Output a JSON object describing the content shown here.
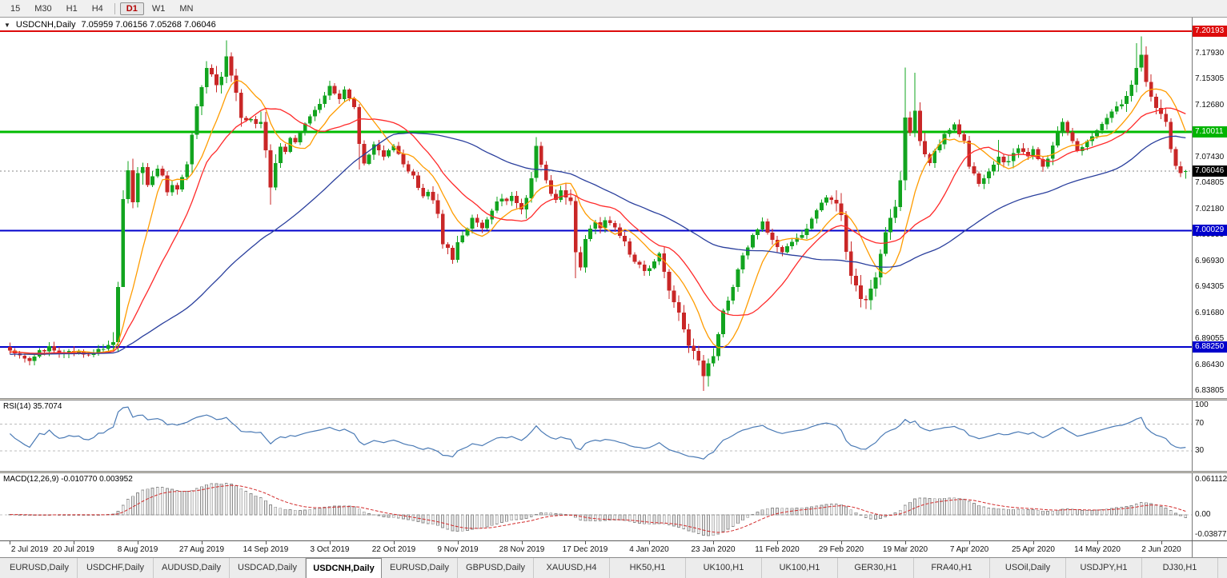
{
  "toolbar": {
    "periods": [
      "15",
      "M30",
      "H1",
      "H4",
      "|",
      "D1",
      "W1",
      "MN"
    ],
    "active": "D1"
  },
  "chart": {
    "symbol_title": "USDCNH,Daily",
    "ohlc_text": "7.05959 7.06156 7.05268 7.06046"
  },
  "colors": {
    "up": "#12a41f",
    "down": "#c92727"
  },
  "price_axis": {
    "labels": [
      {
        "t": "7.17930",
        "p": 7.1793
      },
      {
        "t": "7.15305",
        "p": 7.15305
      },
      {
        "t": "7.12680",
        "p": 7.1268
      },
      {
        "t": "7.07430",
        "p": 7.0743
      },
      {
        "t": "7.04805",
        "p": 7.04805
      },
      {
        "t": "7.02180",
        "p": 7.0218
      },
      {
        "t": "6.99555",
        "p": 6.99555
      },
      {
        "t": "6.96930",
        "p": 6.9693
      },
      {
        "t": "6.94305",
        "p": 6.94305
      },
      {
        "t": "6.91680",
        "p": 6.9168
      },
      {
        "t": "6.89055",
        "p": 6.89055
      },
      {
        "t": "6.86430",
        "p": 6.8643
      },
      {
        "t": "6.83805",
        "p": 6.83805
      }
    ],
    "badges": [
      {
        "t": "7.20193",
        "p": 7.20193,
        "bg": "#dd0b0b"
      },
      {
        "t": "7.10011",
        "p": 7.10011,
        "bg": "#00b400"
      },
      {
        "t": "7.06046",
        "p": 7.06046,
        "bg": "#000000"
      },
      {
        "t": "7.00029",
        "p": 7.00029,
        "bg": "#0000cc"
      },
      {
        "t": "6.88250",
        "p": 6.8825,
        "bg": "#0000cc"
      }
    ]
  },
  "chart_data": {
    "type": "candlestick",
    "title": "USDCNH,Daily",
    "bars": 240,
    "bid": 7.06046,
    "price_range": {
      "top": 7.2157,
      "bottom": 6.8308
    },
    "levels": [
      {
        "p": 7.20193,
        "c": "#dd0b0b",
        "w": 2
      },
      {
        "p": 7.10011,
        "c": "#00bb00",
        "w": 3
      },
      {
        "p": 7.00029,
        "c": "#0000cc",
        "w": 2
      },
      {
        "p": 6.8825,
        "c": "#0000cc",
        "w": 2
      }
    ],
    "moving_averages": [
      {
        "period": 9,
        "color": "#ff9c00"
      },
      {
        "period": 18,
        "color": "#ff2a2a"
      },
      {
        "period": 56,
        "color": "#2a3f9d"
      }
    ],
    "anchors": [
      [
        0,
        6.879
      ],
      [
        2,
        6.875
      ],
      [
        4,
        6.87
      ],
      [
        6,
        6.878
      ],
      [
        8,
        6.882
      ],
      [
        10,
        6.876
      ],
      [
        12,
        6.88
      ],
      [
        14,
        6.877
      ],
      [
        16,
        6.873
      ],
      [
        18,
        6.88
      ],
      [
        20,
        6.883
      ],
      [
        21,
        6.886
      ],
      [
        22,
        6.942
      ],
      [
        23,
        7.035
      ],
      [
        24,
        7.06
      ],
      [
        25,
        7.028
      ],
      [
        26,
        7.056
      ],
      [
        27,
        7.065
      ],
      [
        28,
        7.048
      ],
      [
        29,
        7.056
      ],
      [
        30,
        7.064
      ],
      [
        31,
        7.056
      ],
      [
        32,
        7.04
      ],
      [
        33,
        7.047
      ],
      [
        34,
        7.043
      ],
      [
        35,
        7.056
      ],
      [
        36,
        7.068
      ],
      [
        37,
        7.098
      ],
      [
        38,
        7.128
      ],
      [
        39,
        7.148
      ],
      [
        40,
        7.163
      ],
      [
        41,
        7.156
      ],
      [
        42,
        7.145
      ],
      [
        43,
        7.158
      ],
      [
        44,
        7.176
      ],
      [
        45,
        7.16
      ],
      [
        46,
        7.14
      ],
      [
        47,
        7.116
      ],
      [
        48,
        7.11
      ],
      [
        49,
        7.114
      ],
      [
        50,
        7.108
      ],
      [
        51,
        7.113
      ],
      [
        52,
        7.082
      ],
      [
        53,
        7.046
      ],
      [
        54,
        7.068
      ],
      [
        55,
        7.084
      ],
      [
        56,
        7.078
      ],
      [
        57,
        7.093
      ],
      [
        58,
        7.089
      ],
      [
        59,
        7.101
      ],
      [
        60,
        7.108
      ],
      [
        61,
        7.116
      ],
      [
        62,
        7.123
      ],
      [
        63,
        7.13
      ],
      [
        64,
        7.138
      ],
      [
        65,
        7.146
      ],
      [
        66,
        7.139
      ],
      [
        67,
        7.134
      ],
      [
        68,
        7.142
      ],
      [
        69,
        7.135
      ],
      [
        70,
        7.126
      ],
      [
        71,
        7.09
      ],
      [
        72,
        7.068
      ],
      [
        73,
        7.079
      ],
      [
        74,
        7.086
      ],
      [
        75,
        7.08
      ],
      [
        76,
        7.076
      ],
      [
        77,
        7.082
      ],
      [
        78,
        7.086
      ],
      [
        79,
        7.078
      ],
      [
        80,
        7.068
      ],
      [
        81,
        7.062
      ],
      [
        82,
        7.056
      ],
      [
        83,
        7.045
      ],
      [
        84,
        7.037
      ],
      [
        85,
        7.04
      ],
      [
        86,
        7.033
      ],
      [
        87,
        7.018
      ],
      [
        88,
        6.988
      ],
      [
        89,
        6.98
      ],
      [
        90,
        6.972
      ],
      [
        91,
        6.986
      ],
      [
        92,
        6.996
      ],
      [
        93,
        7.004
      ],
      [
        94,
        7.012
      ],
      [
        95,
        7.008
      ],
      [
        96,
        7.002
      ],
      [
        97,
        7.01
      ],
      [
        98,
        7.022
      ],
      [
        99,
        7.028
      ],
      [
        100,
        7.033
      ],
      [
        101,
        7.03
      ],
      [
        102,
        7.035
      ],
      [
        103,
        7.028
      ],
      [
        104,
        7.023
      ],
      [
        105,
        7.032
      ],
      [
        106,
        7.052
      ],
      [
        107,
        7.086
      ],
      [
        108,
        7.066
      ],
      [
        109,
        7.052
      ],
      [
        110,
        7.036
      ],
      [
        111,
        7.032
      ],
      [
        112,
        7.04
      ],
      [
        113,
        7.036
      ],
      [
        114,
        7.03
      ],
      [
        115,
        6.978
      ],
      [
        116,
        6.965
      ],
      [
        117,
        6.993
      ],
      [
        118,
        7.002
      ],
      [
        119,
        7.008
      ],
      [
        120,
        7.004
      ],
      [
        121,
        7.011
      ],
      [
        122,
        7.008
      ],
      [
        123,
        7.002
      ],
      [
        124,
        6.996
      ],
      [
        125,
        6.99
      ],
      [
        126,
        6.978
      ],
      [
        127,
        6.97
      ],
      [
        128,
        6.966
      ],
      [
        129,
        6.961
      ],
      [
        130,
        6.964
      ],
      [
        131,
        6.97
      ],
      [
        132,
        6.976
      ],
      [
        133,
        6.96
      ],
      [
        134,
        6.942
      ],
      [
        135,
        6.928
      ],
      [
        136,
        6.916
      ],
      [
        137,
        6.9
      ],
      [
        138,
        6.886
      ],
      [
        139,
        6.876
      ],
      [
        140,
        6.868
      ],
      [
        141,
        6.856
      ],
      [
        142,
        6.864
      ],
      [
        143,
        6.872
      ],
      [
        144,
        6.895
      ],
      [
        145,
        6.918
      ],
      [
        146,
        6.93
      ],
      [
        147,
        6.942
      ],
      [
        148,
        6.96
      ],
      [
        149,
        6.975
      ],
      [
        150,
        6.985
      ],
      [
        151,
        6.995
      ],
      [
        152,
        7.002
      ],
      [
        153,
        7.009
      ],
      [
        154,
        6.998
      ],
      [
        155,
        6.99
      ],
      [
        156,
        6.984
      ],
      [
        157,
        6.979
      ],
      [
        158,
        6.983
      ],
      [
        159,
        6.987
      ],
      [
        160,
        6.991
      ],
      [
        161,
        6.996
      ],
      [
        162,
        7.004
      ],
      [
        163,
        7.012
      ],
      [
        164,
        7.023
      ],
      [
        165,
        7.03
      ],
      [
        166,
        7.034
      ],
      [
        167,
        7.03
      ],
      [
        168,
        7.026
      ],
      [
        169,
        7.013
      ],
      [
        170,
        6.978
      ],
      [
        171,
        6.956
      ],
      [
        172,
        6.942
      ],
      [
        173,
        6.933
      ],
      [
        174,
        6.929
      ],
      [
        175,
        6.94
      ],
      [
        176,
        6.954
      ],
      [
        177,
        6.976
      ],
      [
        178,
        6.998
      ],
      [
        179,
        7.012
      ],
      [
        180,
        7.024
      ],
      [
        181,
        7.05
      ],
      [
        182,
        7.112
      ],
      [
        183,
        7.101
      ],
      [
        184,
        7.123
      ],
      [
        185,
        7.093
      ],
      [
        186,
        7.076
      ],
      [
        187,
        7.07
      ],
      [
        188,
        7.081
      ],
      [
        189,
        7.089
      ],
      [
        190,
        7.096
      ],
      [
        191,
        7.101
      ],
      [
        192,
        7.106
      ],
      [
        193,
        7.099
      ],
      [
        194,
        7.09
      ],
      [
        195,
        7.067
      ],
      [
        196,
        7.056
      ],
      [
        197,
        7.047
      ],
      [
        198,
        7.052
      ],
      [
        199,
        7.058
      ],
      [
        200,
        7.066
      ],
      [
        201,
        7.076
      ],
      [
        202,
        7.071
      ],
      [
        203,
        7.068
      ],
      [
        204,
        7.077
      ],
      [
        205,
        7.085
      ],
      [
        206,
        7.08
      ],
      [
        207,
        7.077
      ],
      [
        208,
        7.083
      ],
      [
        209,
        7.074
      ],
      [
        210,
        7.064
      ],
      [
        211,
        7.074
      ],
      [
        212,
        7.086
      ],
      [
        213,
        7.1
      ],
      [
        214,
        7.112
      ],
      [
        215,
        7.101
      ],
      [
        216,
        7.089
      ],
      [
        217,
        7.081
      ],
      [
        218,
        7.085
      ],
      [
        219,
        7.089
      ],
      [
        220,
        7.094
      ],
      [
        221,
        7.101
      ],
      [
        222,
        7.108
      ],
      [
        223,
        7.114
      ],
      [
        224,
        7.119
      ],
      [
        225,
        7.125
      ],
      [
        226,
        7.13
      ],
      [
        227,
        7.137
      ],
      [
        228,
        7.148
      ],
      [
        229,
        7.168
      ],
      [
        230,
        7.176
      ],
      [
        231,
        7.153
      ],
      [
        232,
        7.134
      ],
      [
        233,
        7.127
      ],
      [
        234,
        7.118
      ],
      [
        235,
        7.11
      ],
      [
        236,
        7.083
      ],
      [
        237,
        7.065
      ],
      [
        238,
        7.058
      ],
      [
        239,
        7.06046
      ]
    ],
    "vol_regions": [
      [
        21,
        27,
        2.4
      ],
      [
        37,
        47,
        1.7
      ],
      [
        51,
        54,
        2.0
      ],
      [
        86,
        91,
        1.5
      ],
      [
        105,
        109,
        1.8
      ],
      [
        113,
        117,
        2.2
      ],
      [
        133,
        143,
        1.6
      ],
      [
        168,
        186,
        2.0
      ],
      [
        199,
        205,
        1.4
      ],
      [
        212,
        216,
        1.3
      ],
      [
        227,
        234,
        1.9
      ]
    ],
    "extremes": {
      "23": {
        "l": 6.945
      },
      "24": {
        "h": 7.0705
      },
      "44": {
        "h": 7.1926
      },
      "53": {
        "l": 7.0265
      },
      "71": {
        "l": 7.062
      },
      "107": {
        "h": 7.0948
      },
      "115": {
        "l": 6.952
      },
      "141": {
        "l": 6.838
      },
      "142": {
        "l": 6.8425
      },
      "170": {
        "h": 7.02
      },
      "182": {
        "h": 7.165
      },
      "184": {
        "h": 7.16
      },
      "201": {
        "h": 7.092
      },
      "229": {
        "h": 7.19
      },
      "230": {
        "h": 7.1965
      }
    },
    "last_bar": [
      7.05959,
      7.06156,
      7.05268,
      7.06046
    ],
    "x_labels": [
      {
        "i": 0,
        "t": "2 Jul 2019"
      },
      {
        "i": 13,
        "t": "20 Jul 2019"
      },
      {
        "i": 26,
        "t": "8 Aug 2019"
      },
      {
        "i": 39,
        "t": "27 Aug 2019"
      },
      {
        "i": 52,
        "t": "14 Sep 2019"
      },
      {
        "i": 65,
        "t": "3 Oct 2019"
      },
      {
        "i": 78,
        "t": "22 Oct 2019"
      },
      {
        "i": 91,
        "t": "9 Nov 2019"
      },
      {
        "i": 104,
        "t": "28 Nov 2019"
      },
      {
        "i": 117,
        "t": "17 Dec 2019"
      },
      {
        "i": 130,
        "t": "4 Jan 2020"
      },
      {
        "i": 143,
        "t": "23 Jan 2020"
      },
      {
        "i": 156,
        "t": "11 Feb 2020"
      },
      {
        "i": 169,
        "t": "29 Feb 2020"
      },
      {
        "i": 182,
        "t": "19 Mar 2020"
      },
      {
        "i": 195,
        "t": "7 Apr 2020"
      },
      {
        "i": 208,
        "t": "25 Apr 2020"
      },
      {
        "i": 221,
        "t": "14 May 2020"
      },
      {
        "i": 234,
        "t": "2 Jun 2020"
      }
    ],
    "rsi": {
      "label": "RSI(14) 35.7074",
      "period": 14,
      "color": "#4a7ab5",
      "levels": [
        70,
        30
      ],
      "axis": [
        {
          "t": "100",
          "v": 100
        },
        {
          "t": "70",
          "v": 70
        },
        {
          "t": "30",
          "v": 30
        }
      ]
    },
    "macd": {
      "label": "MACD(12,26,9) -0.010770 0.003952",
      "signal_color": "#d22a2a",
      "axis": [
        "0.061112",
        "0.00",
        "-0.038777"
      ]
    }
  },
  "tabs": {
    "items": [
      "EURUSD,Daily",
      "USDCHF,Daily",
      "AUDUSD,Daily",
      "USDCAD,Daily",
      "USDCNH,Daily",
      "EURUSD,Daily",
      "GBPUSD,Daily",
      "XAUUSD,H4",
      "HK50,H1",
      "UK100,H1",
      "UK100,H1",
      "GER30,H1",
      "FRA40,H1",
      "USOil,Daily",
      "USDJPY,H1",
      "DJ30,H1"
    ],
    "active_index": 4
  }
}
